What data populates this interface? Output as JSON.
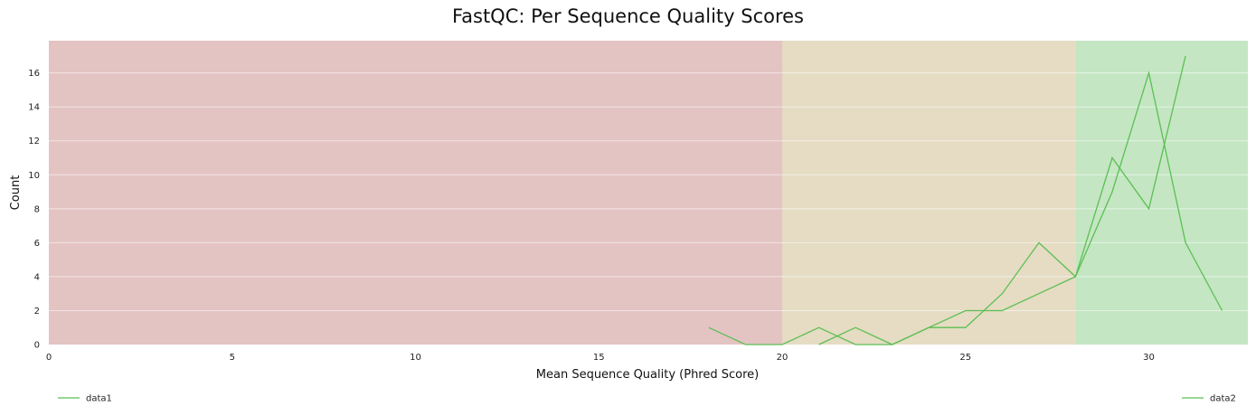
{
  "chart_data": {
    "type": "line",
    "title": "FastQC: Per Sequence Quality Scores",
    "xlabel": "Mean Sequence Quality (Phred Score)",
    "ylabel": "Count",
    "xlim": [
      0,
      32.7
    ],
    "ylim": [
      0,
      17.9
    ],
    "xticks": [
      0,
      5,
      10,
      15,
      20,
      25,
      30
    ],
    "yticks": [
      0,
      2,
      4,
      6,
      8,
      10,
      12,
      14,
      16
    ],
    "grid": "horizontal",
    "bands": [
      {
        "from": 0,
        "to": 20,
        "color": "#e4c3c3"
      },
      {
        "from": 20,
        "to": 28,
        "color": "#e5dcc3"
      },
      {
        "from": 28,
        "to": 32.7,
        "color": "#c4e6c3"
      }
    ],
    "line_color": "#5cbf53",
    "series": [
      {
        "name": "data1",
        "x": [
          18,
          19,
          20,
          21,
          22,
          23,
          24,
          25,
          26,
          27,
          28,
          29,
          30,
          31,
          32
        ],
        "y": [
          1,
          0,
          0,
          1,
          0,
          0,
          1,
          1,
          3,
          6,
          4,
          11,
          8,
          17,
          null
        ]
      },
      {
        "name": "data2",
        "x": [
          18,
          19,
          20,
          21,
          22,
          23,
          24,
          25,
          26,
          27,
          28,
          29,
          30,
          31,
          32
        ],
        "y": [
          null,
          null,
          null,
          0,
          1,
          0,
          1,
          2,
          2,
          3,
          4,
          9,
          16,
          6,
          2
        ]
      }
    ],
    "legend": [
      {
        "label": "data1",
        "placement": "bottom-left"
      },
      {
        "label": "data2",
        "placement": "bottom-right"
      }
    ]
  }
}
